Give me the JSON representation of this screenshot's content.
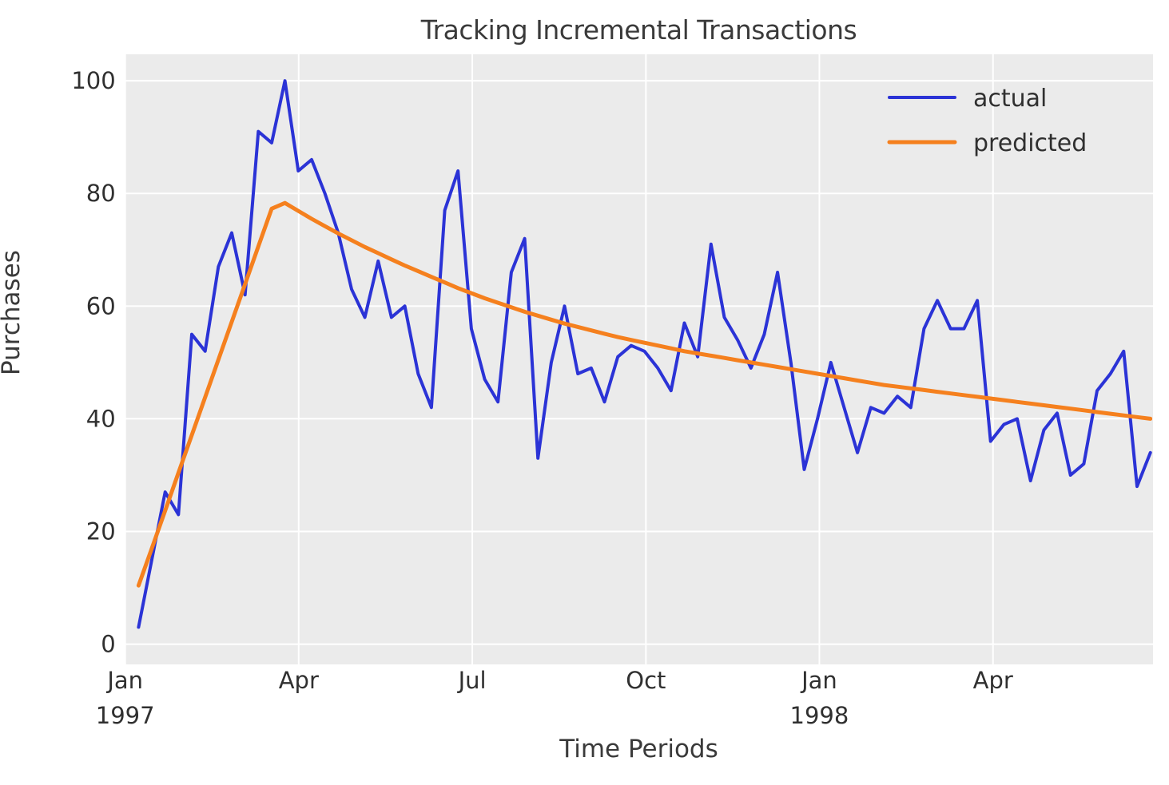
{
  "title": "Tracking Incremental Transactions",
  "axis": {
    "xlabel": "Time Periods",
    "ylabel": "Purchases"
  },
  "legend": {
    "position": "upper right",
    "items": [
      {
        "label": "actual",
        "color": "#2b33d6"
      },
      {
        "label": "predicted",
        "color": "#f5801e"
      }
    ]
  },
  "colors": {
    "plot_background": "#ebebeb",
    "grid": "#ffffff",
    "text": "#3a3a3a",
    "tick_text": "#303030",
    "actual_line": "#2b33d6",
    "predicted_line": "#f5801e"
  },
  "chart_data": {
    "type": "line",
    "title": "Tracking Incremental Transactions",
    "xlabel": "Time Periods",
    "ylabel": "Purchases",
    "x_description": "weekly periods, index 0..76, Jan 1997 - Jun 1998",
    "xlim": [
      -1.0,
      76.2
    ],
    "ylim": [
      -3.6,
      104.7
    ],
    "grid": true,
    "legend_position": "upper right",
    "yticks": [
      0,
      20,
      40,
      60,
      80,
      100
    ],
    "xticks": [
      {
        "pos": -1.0,
        "label": "Jan",
        "sublabel": "1997"
      },
      {
        "pos": 12.03,
        "label": "Apr",
        "sublabel": ""
      },
      {
        "pos": 25.07,
        "label": "Jul",
        "sublabel": ""
      },
      {
        "pos": 38.11,
        "label": "Oct",
        "sublabel": ""
      },
      {
        "pos": 51.14,
        "label": "Jan",
        "sublabel": "1998"
      },
      {
        "pos": 64.18,
        "label": "Apr",
        "sublabel": ""
      }
    ],
    "series": [
      {
        "name": "actual",
        "color": "#2b33d6",
        "stroke_width": 4,
        "values": [
          3,
          15,
          27,
          23,
          55,
          52,
          67,
          73,
          62,
          91,
          89,
          100,
          84,
          86,
          80,
          73,
          63,
          58,
          68,
          58,
          60,
          48,
          42,
          77,
          84,
          56,
          47,
          43,
          66,
          72,
          33,
          50,
          60,
          48,
          49,
          43,
          51,
          53,
          52,
          49,
          45,
          57,
          51,
          71,
          58,
          54,
          49,
          55,
          66,
          50,
          31,
          40,
          50,
          42,
          34,
          42,
          41,
          44,
          42,
          56,
          61,
          56,
          56,
          61,
          36,
          39,
          40,
          29,
          38,
          41,
          30,
          32,
          45,
          48,
          52,
          28,
          34
        ]
      },
      {
        "name": "predicted",
        "color": "#f5801e",
        "stroke_width": 5,
        "values": [
          10.4,
          17,
          23.7,
          30.4,
          37.1,
          43.8,
          50.5,
          57.2,
          63.9,
          70.6,
          77.3,
          78.3,
          76.9,
          75.5,
          74.2,
          72.9,
          71.7,
          70.5,
          69.4,
          68.3,
          67.2,
          66.2,
          65.2,
          64.2,
          63.2,
          62.3,
          61.4,
          60.6,
          59.8,
          59.0,
          58.3,
          57.6,
          56.9,
          56.3,
          55.7,
          55.1,
          54.5,
          54.0,
          53.5,
          53.0,
          52.5,
          52.0,
          51.6,
          51.2,
          50.8,
          50.4,
          50.0,
          49.6,
          49.2,
          48.8,
          48.4,
          48.0,
          47.6,
          47.2,
          46.8,
          46.4,
          46.0,
          45.7,
          45.4,
          45.1,
          44.8,
          44.5,
          44.2,
          43.9,
          43.6,
          43.3,
          43.0,
          42.7,
          42.4,
          42.1,
          41.8,
          41.5,
          41.2,
          40.9,
          40.6,
          40.3,
          40.0
        ]
      }
    ]
  }
}
